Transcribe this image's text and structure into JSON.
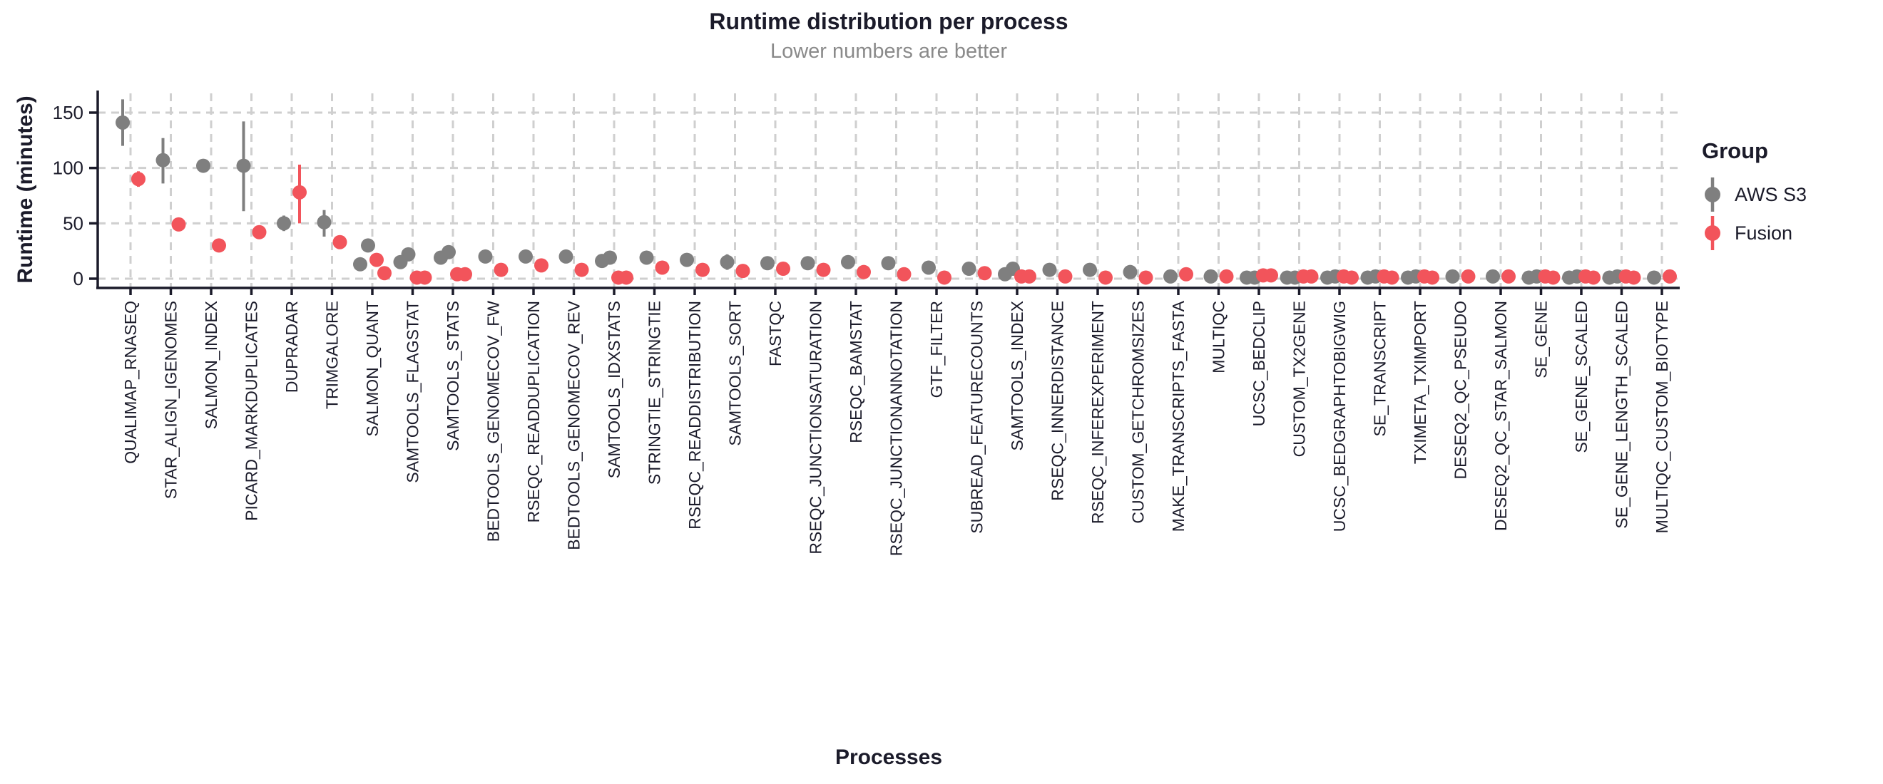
{
  "theme": {
    "text_color": "#1b1b2a",
    "subtitle_color": "#8a8a8a",
    "grid_color": "#cfcfcf",
    "axis_color": "#1b1b2a",
    "background": "#ffffff"
  },
  "chart_data": {
    "type": "scatter",
    "title": "Runtime distribution per process",
    "subtitle": "Lower numbers are better",
    "xlabel": "Processes",
    "ylabel": "Runtime (minutes)",
    "yticks": [
      0,
      50,
      100,
      150
    ],
    "ylim": [
      0,
      170
    ],
    "grid": true,
    "legend": {
      "title": "Group",
      "position": "right",
      "entries": [
        {
          "name": "AWS S3",
          "color": "#7F7F7F"
        },
        {
          "name": "Fusion",
          "color": "#F2545B"
        }
      ]
    },
    "processes": [
      {
        "name": "QUALIMAP_RNASEQ",
        "aws": [
          141
        ],
        "aws_err": [
          120,
          162
        ],
        "fusion": [
          90
        ],
        "fusion_err": [
          83,
          97
        ]
      },
      {
        "name": "STAR_ALIGN_IGENOMES",
        "aws": [
          107
        ],
        "aws_err": [
          86,
          127
        ],
        "fusion": [
          49
        ]
      },
      {
        "name": "SALMON_INDEX",
        "aws": [
          102
        ],
        "fusion": [
          30
        ]
      },
      {
        "name": "PICARD_MARKDUPLICATES",
        "aws": [
          102
        ],
        "aws_err": [
          61,
          142
        ],
        "fusion": [
          42
        ]
      },
      {
        "name": "DUPRADAR",
        "aws": [
          50
        ],
        "aws_err": [
          43,
          57
        ],
        "fusion": [
          78
        ],
        "fusion_err": [
          50,
          103
        ]
      },
      {
        "name": "TRIMGALORE",
        "aws": [
          51
        ],
        "aws_err": [
          38,
          62
        ],
        "fusion": [
          33
        ]
      },
      {
        "name": "SALMON_QUANT",
        "aws": [
          30,
          13
        ],
        "fusion": [
          17,
          5
        ]
      },
      {
        "name": "SAMTOOLS_FLAGSTAT",
        "aws": [
          22,
          15
        ],
        "fusion": [
          1,
          1
        ]
      },
      {
        "name": "SAMTOOLS_STATS",
        "aws": [
          24,
          19
        ],
        "fusion": [
          4,
          4
        ]
      },
      {
        "name": "BEDTOOLS_GENOMECOV_FW",
        "aws": [
          20
        ],
        "fusion": [
          8
        ]
      },
      {
        "name": "RSEQC_READDUPLICATION",
        "aws": [
          20
        ],
        "fusion": [
          12
        ]
      },
      {
        "name": "BEDTOOLS_GENOMECOV_REV",
        "aws": [
          20
        ],
        "fusion": [
          8
        ]
      },
      {
        "name": "SAMTOOLS_IDXSTATS",
        "aws": [
          19,
          16
        ],
        "fusion": [
          1,
          1
        ]
      },
      {
        "name": "STRINGTIE_STRINGTIE",
        "aws": [
          19
        ],
        "fusion": [
          10
        ]
      },
      {
        "name": "RSEQC_READDISTRIBUTION",
        "aws": [
          17
        ],
        "fusion": [
          8
        ]
      },
      {
        "name": "SAMTOOLS_SORT",
        "aws": [
          15
        ],
        "aws_err": [
          8,
          22
        ],
        "fusion": [
          7
        ]
      },
      {
        "name": "FASTQC",
        "aws": [
          14
        ],
        "fusion": [
          9
        ]
      },
      {
        "name": "RSEQC_JUNCTIONSATURATION",
        "aws": [
          14
        ],
        "fusion": [
          8
        ]
      },
      {
        "name": "RSEQC_BAMSTAT",
        "aws": [
          15
        ],
        "fusion": [
          6
        ]
      },
      {
        "name": "RSEQC_JUNCTIONANNOTATION",
        "aws": [
          14
        ],
        "fusion": [
          4
        ]
      },
      {
        "name": "GTF_FILTER",
        "aws": [
          10
        ],
        "fusion": [
          1
        ]
      },
      {
        "name": "SUBREAD_FEATURECOUNTS",
        "aws": [
          9
        ],
        "fusion": [
          5
        ]
      },
      {
        "name": "SAMTOOLS_INDEX",
        "aws": [
          9,
          4
        ],
        "fusion": [
          2,
          2
        ]
      },
      {
        "name": "RSEQC_INNERDISTANCE",
        "aws": [
          8
        ],
        "fusion": [
          2
        ]
      },
      {
        "name": "RSEQC_INFEREXPERIMENT",
        "aws": [
          8
        ],
        "fusion": [
          1
        ]
      },
      {
        "name": "CUSTOM_GETCHROMSIZES",
        "aws": [
          6
        ],
        "fusion": [
          1
        ]
      },
      {
        "name": "MAKE_TRANSCRIPTS_FASTA",
        "aws": [
          2
        ],
        "fusion": [
          4
        ]
      },
      {
        "name": "MULTIQC",
        "aws": [
          2
        ],
        "fusion": [
          2
        ]
      },
      {
        "name": "UCSC_BEDCLIP",
        "aws": [
          1,
          1
        ],
        "fusion": [
          3,
          3
        ]
      },
      {
        "name": "CUSTOM_TX2GENE",
        "aws": [
          1,
          1
        ],
        "fusion": [
          2,
          2
        ]
      },
      {
        "name": "UCSC_BEDGRAPHTOBIGWIG",
        "aws": [
          2,
          1
        ],
        "fusion": [
          2,
          1
        ]
      },
      {
        "name": "SE_TRANSCRIPT",
        "aws": [
          2,
          1
        ],
        "fusion": [
          2,
          1
        ]
      },
      {
        "name": "TXIMETA_TXIMPORT",
        "aws": [
          2,
          1
        ],
        "fusion": [
          2,
          1
        ]
      },
      {
        "name": "DESEQ2_QC_PSEUDO",
        "aws": [
          2
        ],
        "fusion": [
          2
        ]
      },
      {
        "name": "DESEQ2_QC_STAR_SALMON",
        "aws": [
          2
        ],
        "fusion": [
          2
        ]
      },
      {
        "name": "SE_GENE",
        "aws": [
          2,
          1
        ],
        "fusion": [
          2,
          1
        ]
      },
      {
        "name": "SE_GENE_SCALED",
        "aws": [
          2,
          1
        ],
        "fusion": [
          2,
          1
        ]
      },
      {
        "name": "SE_GENE_LENGTH_SCALED",
        "aws": [
          2,
          1
        ],
        "fusion": [
          2,
          1
        ]
      },
      {
        "name": "MULTIQC_CUSTOM_BIOTYPE",
        "aws": [
          1
        ],
        "fusion": [
          2
        ]
      }
    ]
  }
}
